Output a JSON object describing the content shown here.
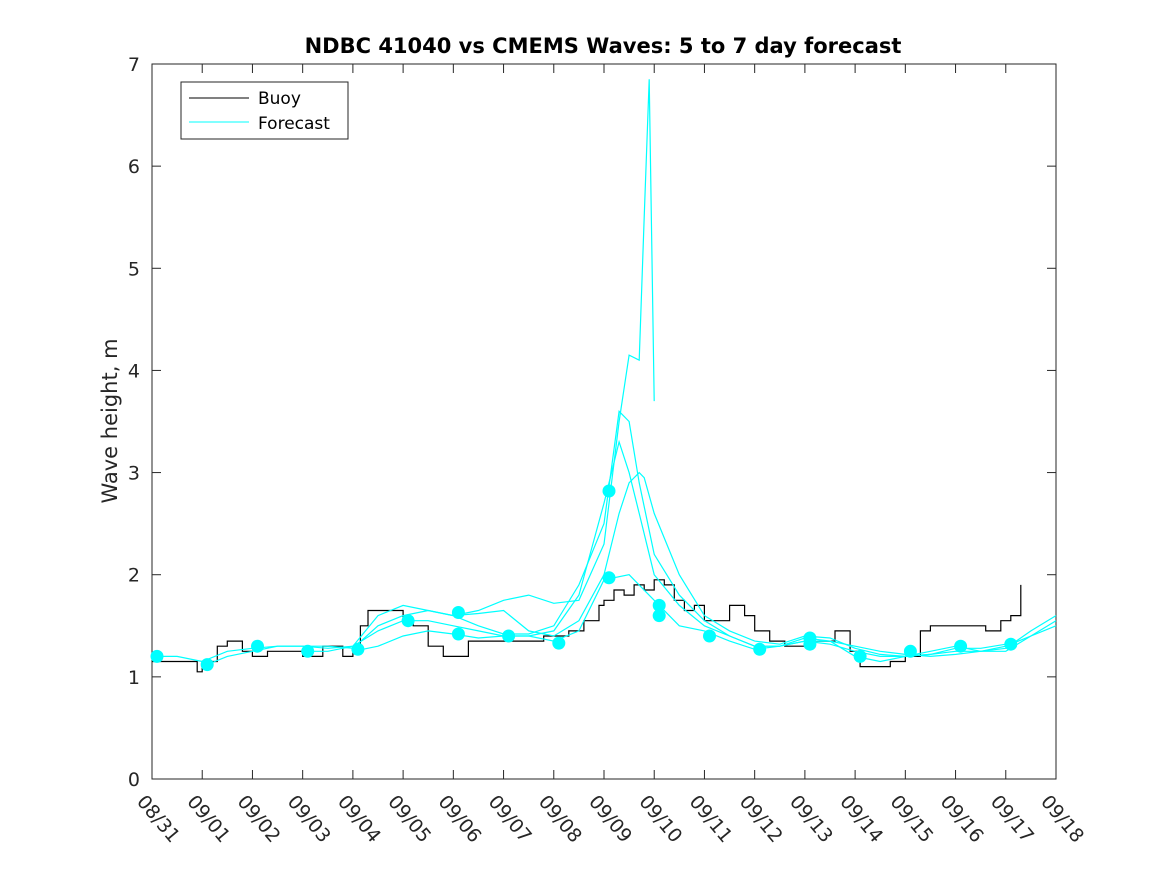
{
  "chart_data": {
    "type": "line",
    "title": "NDBC 41040 vs CMEMS Waves: 5 to 7 day forecast",
    "xlabel": "",
    "ylabel": "Wave height, m",
    "xlim": [
      "08/31",
      "09/18"
    ],
    "ylim": [
      0,
      7
    ],
    "x_tick_labels": [
      "08/31",
      "09/01",
      "09/02",
      "09/03",
      "09/04",
      "09/05",
      "09/06",
      "09/07",
      "09/08",
      "09/09",
      "09/10",
      "09/11",
      "09/12",
      "09/13",
      "09/14",
      "09/15",
      "09/16",
      "09/17",
      "09/18"
    ],
    "y_ticks": [
      0,
      1,
      2,
      3,
      4,
      5,
      6,
      7
    ],
    "x_units": "days since 08/31 00:00",
    "grid": false,
    "legend": {
      "placement": "top-left",
      "entries": [
        {
          "name": "Buoy",
          "color": "#000000"
        },
        {
          "name": "Forecast",
          "color": "#00ffff"
        }
      ]
    },
    "series": [
      {
        "name": "Buoy",
        "color": "#000000",
        "x": [
          0.0,
          0.5,
          0.9,
          1.0,
          1.3,
          1.5,
          1.8,
          2.0,
          2.3,
          2.6,
          3.0,
          3.4,
          3.8,
          4.0,
          4.15,
          4.3,
          4.6,
          4.9,
          5.0,
          5.2,
          5.5,
          5.8,
          6.0,
          6.3,
          6.6,
          7.0,
          7.4,
          7.8,
          8.0,
          8.3,
          8.6,
          8.9,
          9.0,
          9.2,
          9.4,
          9.6,
          9.8,
          10.0,
          10.2,
          10.4,
          10.6,
          10.8,
          11.0,
          11.2,
          11.5,
          11.8,
          12.0,
          12.3,
          12.6,
          13.0,
          13.3,
          13.6,
          13.9,
          14.1,
          14.4,
          14.7,
          15.0,
          15.3,
          15.5,
          15.8,
          16.0,
          16.3,
          16.6,
          16.9,
          17.1,
          17.3
        ],
        "y": [
          1.15,
          1.15,
          1.05,
          1.15,
          1.3,
          1.35,
          1.25,
          1.2,
          1.25,
          1.25,
          1.2,
          1.3,
          1.2,
          1.25,
          1.5,
          1.65,
          1.65,
          1.65,
          1.55,
          1.5,
          1.3,
          1.2,
          1.2,
          1.35,
          1.35,
          1.35,
          1.35,
          1.4,
          1.4,
          1.45,
          1.55,
          1.7,
          1.75,
          1.85,
          1.8,
          1.9,
          1.85,
          1.95,
          1.9,
          1.75,
          1.65,
          1.7,
          1.55,
          1.55,
          1.7,
          1.6,
          1.45,
          1.35,
          1.3,
          1.35,
          1.35,
          1.45,
          1.25,
          1.1,
          1.1,
          1.15,
          1.2,
          1.45,
          1.5,
          1.5,
          1.5,
          1.5,
          1.45,
          1.55,
          1.6,
          1.9
        ]
      },
      {
        "name": "",
        "color": "#00ffff",
        "x": [
          0.0,
          0.5,
          1.0,
          1.5,
          2.0,
          2.5,
          3.0,
          3.5,
          4.0,
          4.5,
          5.0,
          5.5,
          6.0,
          6.5,
          7.0,
          7.5,
          8.0,
          8.5,
          9.0,
          9.3,
          9.5,
          9.7,
          10.0,
          10.5,
          11.0,
          11.5,
          12.0,
          12.5,
          13.0,
          13.5,
          14.0,
          14.5,
          15.0,
          15.5,
          16.0,
          16.5,
          17.0,
          17.5,
          18.0
        ],
        "y": [
          1.2,
          1.2,
          1.15,
          1.25,
          1.28,
          1.3,
          1.3,
          1.28,
          1.3,
          1.45,
          1.55,
          1.55,
          1.5,
          1.45,
          1.4,
          1.4,
          1.45,
          1.8,
          2.7,
          3.3,
          3.0,
          2.6,
          2.0,
          1.7,
          1.5,
          1.4,
          1.3,
          1.3,
          1.35,
          1.32,
          1.25,
          1.2,
          1.2,
          1.22,
          1.25,
          1.25,
          1.3,
          1.4,
          1.55
        ]
      },
      {
        "name": "",
        "color": "#00ffff",
        "x": [
          1.0,
          1.5,
          2.0,
          2.5,
          3.0,
          3.5,
          4.0,
          4.5,
          5.0,
          5.5,
          6.0,
          6.5,
          7.0,
          7.5,
          8.0,
          8.5,
          9.0,
          9.3,
          9.5,
          9.7,
          10.0,
          10.5,
          11.0,
          11.5,
          12.0,
          12.5,
          13.0,
          13.5,
          14.0,
          14.5,
          15.0,
          15.5,
          16.0,
          16.5,
          17.0,
          17.5,
          18.0
        ],
        "y": [
          1.1,
          1.2,
          1.25,
          1.3,
          1.3,
          1.3,
          1.28,
          1.5,
          1.6,
          1.65,
          1.6,
          1.5,
          1.42,
          1.42,
          1.5,
          1.9,
          2.5,
          3.6,
          3.5,
          2.9,
          2.2,
          1.8,
          1.55,
          1.4,
          1.3,
          1.3,
          1.35,
          1.35,
          1.3,
          1.25,
          1.22,
          1.2,
          1.22,
          1.25,
          1.28,
          1.45,
          1.6
        ]
      },
      {
        "name": "",
        "color": "#00ffff",
        "x": [
          3.0,
          3.5,
          4.0,
          4.5,
          5.0,
          5.5,
          6.0,
          6.5,
          7.0,
          7.5,
          8.0,
          8.5,
          9.0,
          9.3,
          9.5,
          9.7,
          9.8,
          9.9,
          10.0
        ],
        "y": [
          1.25,
          1.25,
          1.3,
          1.6,
          1.7,
          1.65,
          1.6,
          1.65,
          1.75,
          1.8,
          1.72,
          1.75,
          2.3,
          3.5,
          4.15,
          4.1,
          5.5,
          6.85,
          3.7
        ]
      },
      {
        "name": "",
        "color": "#00ffff",
        "x": [
          6.0,
          6.5,
          7.0,
          7.5,
          8.0,
          8.5,
          9.0,
          9.3,
          9.5,
          9.7,
          9.8,
          10.0,
          10.5,
          11.0,
          11.5,
          12.0,
          12.5,
          13.0,
          13.5,
          14.0,
          14.5,
          15.0,
          15.5,
          16.0,
          16.5,
          17.0,
          17.5,
          18.0
        ],
        "y": [
          1.6,
          1.62,
          1.65,
          1.45,
          1.4,
          1.55,
          2.0,
          2.6,
          2.9,
          3.0,
          2.95,
          2.6,
          2.0,
          1.6,
          1.45,
          1.35,
          1.32,
          1.4,
          1.38,
          1.28,
          1.22,
          1.2,
          1.25,
          1.3,
          1.25,
          1.25,
          1.4,
          1.5
        ]
      },
      {
        "name": "",
        "color": "#00ffff",
        "x": [
          4.0,
          4.5,
          5.0,
          5.5,
          6.0,
          6.5,
          7.0,
          7.5,
          8.0,
          8.5,
          9.0,
          9.5,
          10.0,
          10.5,
          11.0,
          11.5,
          12.0,
          12.5,
          13.0,
          13.5,
          14.0,
          14.5,
          15.0,
          15.5,
          16.0,
          16.5,
          17.0
        ],
        "y": [
          1.25,
          1.3,
          1.4,
          1.45,
          1.42,
          1.38,
          1.4,
          1.4,
          1.35,
          1.45,
          1.95,
          2.0,
          1.75,
          1.5,
          1.45,
          1.35,
          1.27,
          1.3,
          1.38,
          1.35,
          1.2,
          1.15,
          1.2,
          1.22,
          1.28,
          1.28,
          1.32
        ]
      }
    ],
    "forecast_markers": {
      "color": "#00ffff",
      "x": [
        0.1,
        1.1,
        2.1,
        3.1,
        4.1,
        5.1,
        6.1,
        6.1,
        7.1,
        8.1,
        9.1,
        9.1,
        10.1,
        10.1,
        11.1,
        12.1,
        13.1,
        13.1,
        14.1,
        15.1,
        16.1,
        17.1
      ],
      "y": [
        1.2,
        1.12,
        1.3,
        1.25,
        1.27,
        1.55,
        1.63,
        1.42,
        1.4,
        1.33,
        2.82,
        1.97,
        1.7,
        1.6,
        1.4,
        1.27,
        1.38,
        1.32,
        1.2,
        1.25,
        1.3,
        1.32
      ]
    }
  }
}
